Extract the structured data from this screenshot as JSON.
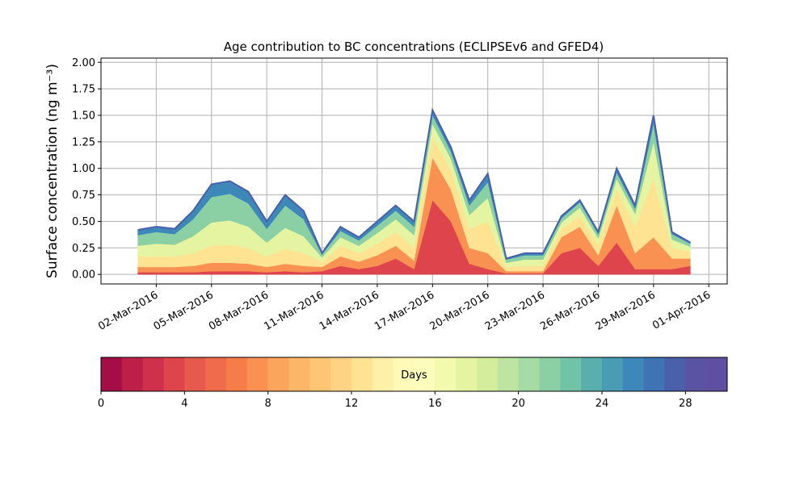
{
  "chart_data": {
    "type": "stacked_area",
    "title": "Age contribution to BC concentrations (ECLIPSEv6 and GFED4)",
    "y_label": "Surface concentration (ng m⁻³)",
    "x": [
      "2016-03-01",
      "2016-03-02",
      "2016-03-03",
      "2016-03-04",
      "2016-03-05",
      "2016-03-06",
      "2016-03-07",
      "2016-03-08",
      "2016-03-09",
      "2016-03-10",
      "2016-03-11",
      "2016-03-12",
      "2016-03-13",
      "2016-03-14",
      "2016-03-15",
      "2016-03-16",
      "2016-03-17",
      "2016-03-18",
      "2016-03-19",
      "2016-03-20",
      "2016-03-21",
      "2016-03-22",
      "2016-03-23",
      "2016-03-24",
      "2016-03-25",
      "2016-03-26",
      "2016-03-27",
      "2016-03-28",
      "2016-03-29",
      "2016-03-30",
      "2016-03-31"
    ],
    "series": [
      {
        "color": "#dd444c",
        "values": [
          0.02,
          0.02,
          0.02,
          0.02,
          0.03,
          0.03,
          0.03,
          0.02,
          0.03,
          0.02,
          0.03,
          0.08,
          0.05,
          0.08,
          0.15,
          0.05,
          0.7,
          0.5,
          0.1,
          0.05,
          0.01,
          0.01,
          0.01,
          0.2,
          0.25,
          0.08,
          0.3,
          0.05,
          0.05,
          0.05,
          0.08
        ]
      },
      {
        "color": "#f99153",
        "values": [
          0.05,
          0.05,
          0.05,
          0.06,
          0.08,
          0.08,
          0.07,
          0.05,
          0.07,
          0.06,
          0.04,
          0.09,
          0.07,
          0.1,
          0.12,
          0.08,
          0.4,
          0.3,
          0.15,
          0.15,
          0.02,
          0.02,
          0.02,
          0.15,
          0.2,
          0.1,
          0.35,
          0.15,
          0.3,
          0.1,
          0.07
        ]
      },
      {
        "color": "#fee392",
        "values": [
          0.1,
          0.1,
          0.1,
          0.12,
          0.16,
          0.17,
          0.15,
          0.1,
          0.14,
          0.12,
          0.05,
          0.1,
          0.08,
          0.11,
          0.13,
          0.12,
          0.2,
          0.18,
          0.18,
          0.3,
          0.04,
          0.05,
          0.05,
          0.08,
          0.1,
          0.1,
          0.15,
          0.25,
          0.55,
          0.1,
          0.06
        ]
      },
      {
        "color": "#e5f4a0",
        "values": [
          0.1,
          0.12,
          0.11,
          0.16,
          0.22,
          0.23,
          0.2,
          0.13,
          0.2,
          0.16,
          0.04,
          0.08,
          0.07,
          0.1,
          0.12,
          0.12,
          0.12,
          0.11,
          0.13,
          0.22,
          0.04,
          0.06,
          0.06,
          0.06,
          0.08,
          0.06,
          0.1,
          0.12,
          0.35,
          0.08,
          0.05
        ]
      },
      {
        "color": "#8ad0a4",
        "values": [
          0.1,
          0.11,
          0.1,
          0.16,
          0.24,
          0.25,
          0.22,
          0.13,
          0.21,
          0.16,
          0.03,
          0.06,
          0.05,
          0.07,
          0.08,
          0.08,
          0.08,
          0.07,
          0.09,
          0.15,
          0.03,
          0.04,
          0.04,
          0.04,
          0.05,
          0.04,
          0.06,
          0.05,
          0.17,
          0.05,
          0.03
        ]
      },
      {
        "color": "#3d88b9",
        "values": [
          0.05,
          0.05,
          0.05,
          0.08,
          0.12,
          0.12,
          0.11,
          0.07,
          0.1,
          0.08,
          0.01,
          0.04,
          0.03,
          0.04,
          0.05,
          0.05,
          0.05,
          0.04,
          0.05,
          0.08,
          0.01,
          0.02,
          0.02,
          0.02,
          0.02,
          0.02,
          0.04,
          0.03,
          0.08,
          0.02,
          0.01
        ]
      }
    ],
    "top_line_color": "#4a60aa",
    "xlim": [
      "2016-02-28",
      "2016-04-02"
    ],
    "xticks": [
      {
        "value": "2016-03-02",
        "label": "02-Mar-2016"
      },
      {
        "value": "2016-03-05",
        "label": "05-Mar-2016"
      },
      {
        "value": "2016-03-08",
        "label": "08-Mar-2016"
      },
      {
        "value": "2016-03-11",
        "label": "11-Mar-2016"
      },
      {
        "value": "2016-03-14",
        "label": "14-Mar-2016"
      },
      {
        "value": "2016-03-17",
        "label": "17-Mar-2016"
      },
      {
        "value": "2016-03-20",
        "label": "20-Mar-2016"
      },
      {
        "value": "2016-03-23",
        "label": "23-Mar-2016"
      },
      {
        "value": "2016-03-26",
        "label": "26-Mar-2016"
      },
      {
        "value": "2016-03-29",
        "label": "29-Mar-2016"
      },
      {
        "value": "2016-04-01",
        "label": "01-Apr-2016"
      }
    ],
    "ylim": [
      -0.09,
      2.04
    ],
    "yticks": [
      {
        "value": 0,
        "label": "0.00"
      },
      {
        "value": 0.25,
        "label": "0.25"
      },
      {
        "value": 0.5,
        "label": "0.50"
      },
      {
        "value": 0.75,
        "label": "0.75"
      },
      {
        "value": 1,
        "label": "1.00"
      },
      {
        "value": 1.25,
        "label": "1.25"
      },
      {
        "value": 1.5,
        "label": "1.50"
      },
      {
        "value": 1.75,
        "label": "1.75"
      },
      {
        "value": 2,
        "label": "2.00"
      }
    ],
    "grid": true,
    "colorbar": {
      "label": "Days",
      "lim": [
        0,
        30
      ],
      "ticks": [
        0,
        4,
        8,
        12,
        16,
        20,
        24,
        28
      ],
      "colors": [
        "#a40d45",
        "#bd1f49",
        "#cf314b",
        "#dd444c",
        "#e65a4c",
        "#f06b4b",
        "#f67c4a",
        "#f99153",
        "#fba45c",
        "#fdb567",
        "#fdc574",
        "#fed484",
        "#fee392",
        "#fff0a7",
        "#fffab8",
        "#fbfdba",
        "#f2faae",
        "#e5f4a0",
        "#d3ed9c",
        "#bde4a0",
        "#a5dba4",
        "#8ad0a4",
        "#70c4a5",
        "#5aafac",
        "#4a9cb4",
        "#3d88b9",
        "#3e74b3",
        "#4a60aa",
        "#5a52a3",
        "#5e4fa2"
      ]
    }
  }
}
